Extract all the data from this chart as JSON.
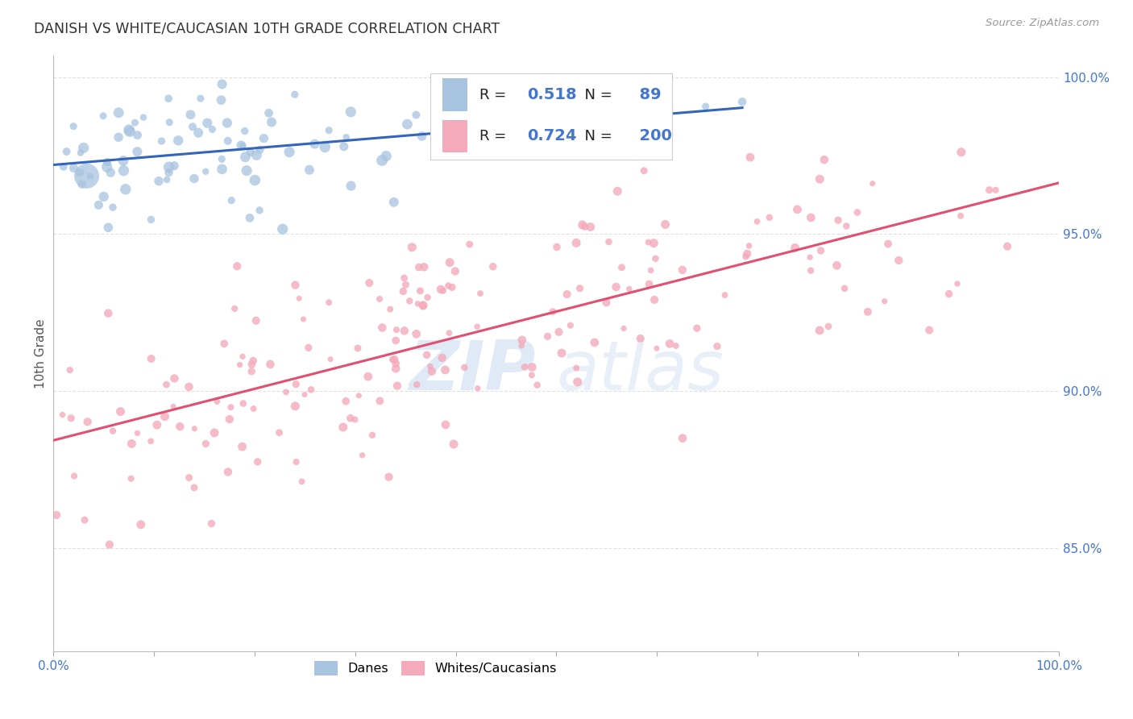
{
  "title": "DANISH VS WHITE/CAUCASIAN 10TH GRADE CORRELATION CHART",
  "source": "Source: ZipAtlas.com",
  "ylabel": "10th Grade",
  "watermark_zip": "ZIP",
  "watermark_atlas": "atlas",
  "legend_danes_R": 0.518,
  "legend_danes_N": 89,
  "legend_white_R": 0.724,
  "legend_white_N": 200,
  "blue_color": "#A8C4E0",
  "pink_color": "#F4AABB",
  "blue_line_color": "#3366BB",
  "pink_line_color": "#E05070",
  "axis_label_color": "#4477CC",
  "title_color": "#333333",
  "grid_color": "#DDDDDD",
  "background_color": "#FFFFFF",
  "danes_seed": 42,
  "whites_seed": 77,
  "danes_n": 89,
  "whites_n": 200
}
